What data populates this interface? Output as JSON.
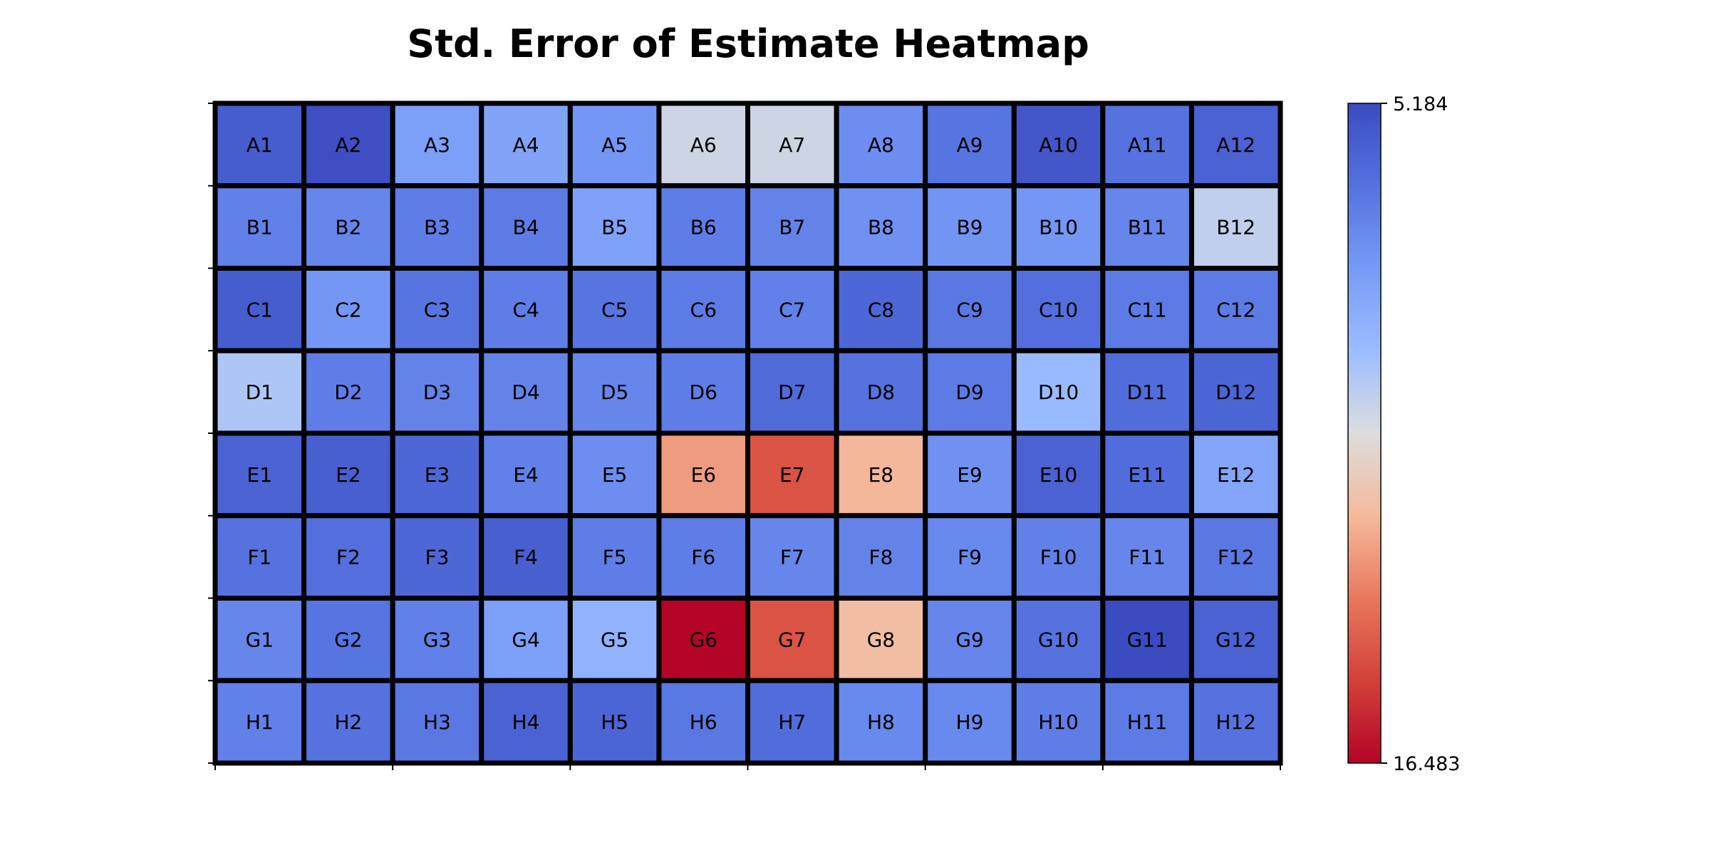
{
  "chart_data": {
    "type": "heatmap",
    "title": "Std. Error of Estimate Heatmap",
    "rows": [
      "A",
      "B",
      "C",
      "D",
      "E",
      "F",
      "G",
      "H"
    ],
    "columns": [
      "1",
      "2",
      "3",
      "4",
      "5",
      "6",
      "7",
      "8",
      "9",
      "10",
      "11",
      "12"
    ],
    "cell_labels": [
      [
        "A1",
        "A2",
        "A3",
        "A4",
        "A5",
        "A6",
        "A7",
        "A8",
        "A9",
        "A10",
        "A11",
        "A12"
      ],
      [
        "B1",
        "B2",
        "B3",
        "B4",
        "B5",
        "B6",
        "B7",
        "B8",
        "B9",
        "B10",
        "B11",
        "B12"
      ],
      [
        "C1",
        "C2",
        "C3",
        "C4",
        "C5",
        "C6",
        "C7",
        "C8",
        "C9",
        "C10",
        "C11",
        "C12"
      ],
      [
        "D1",
        "D2",
        "D3",
        "D4",
        "D5",
        "D6",
        "D7",
        "D8",
        "D9",
        "D10",
        "D11",
        "D12"
      ],
      [
        "E1",
        "E2",
        "E3",
        "E4",
        "E5",
        "E6",
        "E7",
        "E8",
        "E9",
        "E10",
        "E11",
        "E12"
      ],
      [
        "F1",
        "F2",
        "F3",
        "F4",
        "F5",
        "F6",
        "F7",
        "F8",
        "F9",
        "F10",
        "F11",
        "F12"
      ],
      [
        "G1",
        "G2",
        "G3",
        "G4",
        "G5",
        "G6",
        "G7",
        "G8",
        "G9",
        "G10",
        "G11",
        "G12"
      ],
      [
        "H1",
        "H2",
        "H3",
        "H4",
        "H5",
        "H6",
        "H7",
        "H8",
        "H9",
        "H10",
        "H11",
        "H12"
      ]
    ],
    "values": [
      [
        5.8,
        5.3,
        8.2,
        8.4,
        7.9,
        10.5,
        10.5,
        7.6,
        6.7,
        5.6,
        6.6,
        6.0
      ],
      [
        7.1,
        7.3,
        7.0,
        6.9,
        8.3,
        7.0,
        7.2,
        7.7,
        7.8,
        7.9,
        7.3,
        10.2
      ],
      [
        5.8,
        7.9,
        6.7,
        7.0,
        6.7,
        6.9,
        7.1,
        6.2,
        6.8,
        6.5,
        6.9,
        6.9
      ],
      [
        9.8,
        7.0,
        7.2,
        7.2,
        7.3,
        7.0,
        6.3,
        6.6,
        6.9,
        9.3,
        6.4,
        6.1
      ],
      [
        6.0,
        5.9,
        6.2,
        7.1,
        7.6,
        12.9,
        14.6,
        12.3,
        7.7,
        6.0,
        6.4,
        8.5
      ],
      [
        6.6,
        6.5,
        6.2,
        5.9,
        7.0,
        7.0,
        7.3,
        7.2,
        7.4,
        7.1,
        7.3,
        6.8
      ],
      [
        7.3,
        6.7,
        7.1,
        8.2,
        9.0,
        16.483,
        14.6,
        12.1,
        7.3,
        6.6,
        5.184,
        6.0
      ],
      [
        7.1,
        6.6,
        6.8,
        6.0,
        6.1,
        6.8,
        6.4,
        7.4,
        7.4,
        7.0,
        6.9,
        6.6
      ]
    ],
    "vmin": 5.184,
    "vmax": 16.483,
    "colormap": "coolwarm",
    "colorbar_reversed": true,
    "colorbar": {
      "top_label": "5.184",
      "bottom_label": "16.483"
    },
    "grid_color": "#000000"
  }
}
